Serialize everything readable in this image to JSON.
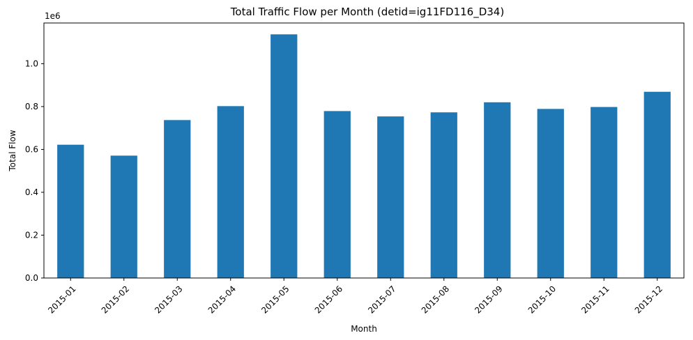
{
  "chart_data": {
    "type": "bar",
    "title": "Total Traffic Flow per Month (detid=ig11FD116_D34)",
    "xlabel": "Month",
    "ylabel": "Total Flow",
    "y_offset_label": "1e6",
    "y_scale": 1000000,
    "categories": [
      "2015-01",
      "2015-02",
      "2015-03",
      "2015-04",
      "2015-05",
      "2015-06",
      "2015-07",
      "2015-08",
      "2015-09",
      "2015-10",
      "2015-11",
      "2015-12"
    ],
    "values": [
      622000,
      571000,
      737000,
      802000,
      1137000,
      779000,
      754000,
      773000,
      820000,
      789000,
      798000,
      869000
    ],
    "ylim": [
      0,
      1190000
    ],
    "yticks": [
      0.0,
      0.2,
      0.4,
      0.6,
      0.8,
      1.0
    ],
    "ytick_labels": [
      "0.0",
      "0.2",
      "0.4",
      "0.6",
      "0.8",
      "1.0"
    ],
    "legend": "none",
    "grid": false,
    "bar_color": "#1f77b4"
  }
}
